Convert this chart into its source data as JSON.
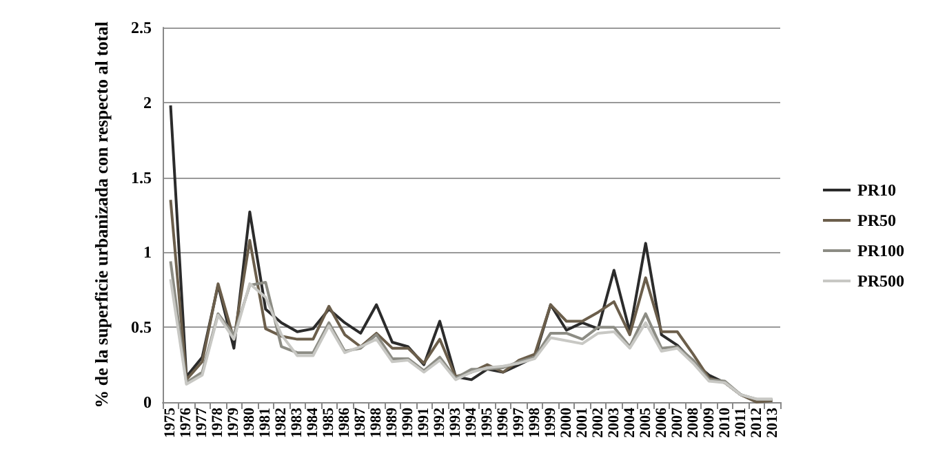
{
  "chart_data": {
    "type": "line",
    "ylabel": "% de la superficie urbanizada con respecto al total",
    "categories": [
      "1975",
      "1976",
      "1977",
      "1978",
      "1979",
      "1980",
      "1981",
      "1982",
      "1983",
      "1984",
      "1985",
      "1986",
      "1987",
      "1988",
      "1989",
      "1990",
      "1991",
      "1992",
      "1993",
      "1994",
      "1995",
      "1996",
      "1997",
      "1998",
      "1999",
      "2000",
      "2001",
      "2002",
      "2003",
      "2004",
      "2005",
      "2006",
      "2007",
      "2008",
      "2009",
      "2010",
      "2011",
      "2012",
      "2013"
    ],
    "series": [
      {
        "name": "PR10",
        "color": "#2b2b2b",
        "values": [
          1.98,
          0.17,
          0.3,
          0.78,
          0.36,
          1.27,
          0.62,
          0.53,
          0.47,
          0.49,
          0.62,
          0.53,
          0.46,
          0.65,
          0.4,
          0.37,
          0.25,
          0.54,
          0.17,
          0.15,
          0.22,
          0.2,
          0.25,
          0.3,
          0.65,
          0.48,
          0.53,
          0.49,
          0.88,
          0.47,
          1.06,
          0.45,
          0.38,
          0.27,
          0.18,
          0.13,
          0.05,
          0.01,
          0.01
        ]
      },
      {
        "name": "PR50",
        "color": "#6b5e4b",
        "values": [
          1.35,
          0.15,
          0.27,
          0.79,
          0.42,
          1.08,
          0.49,
          0.44,
          0.42,
          0.42,
          0.64,
          0.45,
          0.37,
          0.46,
          0.36,
          0.36,
          0.26,
          0.42,
          0.17,
          0.2,
          0.25,
          0.2,
          0.28,
          0.32,
          0.65,
          0.54,
          0.54,
          0.6,
          0.67,
          0.45,
          0.83,
          0.47,
          0.47,
          0.32,
          0.16,
          0.13,
          0.05,
          0.0,
          0.01
        ]
      },
      {
        "name": "PR100",
        "color": "#8c8c84",
        "values": [
          0.94,
          0.13,
          0.2,
          0.59,
          0.45,
          0.78,
          0.8,
          0.37,
          0.33,
          0.33,
          0.53,
          0.34,
          0.36,
          0.45,
          0.29,
          0.29,
          0.21,
          0.3,
          0.16,
          0.22,
          0.22,
          0.23,
          0.27,
          0.3,
          0.46,
          0.46,
          0.42,
          0.5,
          0.5,
          0.37,
          0.59,
          0.36,
          0.37,
          0.28,
          0.15,
          0.14,
          0.05,
          0.02,
          0.02
        ]
      },
      {
        "name": "PR500",
        "color": "#c8c8c4",
        "values": [
          0.82,
          0.12,
          0.18,
          0.58,
          0.42,
          0.79,
          0.7,
          0.45,
          0.31,
          0.31,
          0.51,
          0.33,
          0.37,
          0.42,
          0.27,
          0.28,
          0.2,
          0.28,
          0.15,
          0.2,
          0.23,
          0.24,
          0.26,
          0.29,
          0.43,
          0.41,
          0.39,
          0.46,
          0.47,
          0.36,
          0.53,
          0.34,
          0.36,
          0.26,
          0.14,
          0.13,
          0.05,
          0.02,
          0.02
        ]
      }
    ],
    "ylim": [
      0,
      2.5
    ],
    "yticks": [
      0,
      0.5,
      1,
      1.5,
      2,
      2.5
    ],
    "grid": "y",
    "legend": "right",
    "marker": "none",
    "line_style": "solid"
  }
}
